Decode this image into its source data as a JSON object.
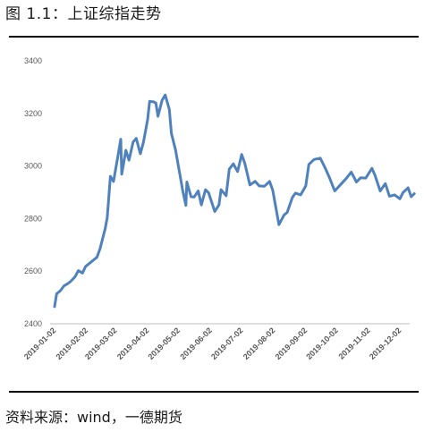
{
  "title": "图 1.1：上证综指走势",
  "source": "资料来源：wind，一德期货",
  "colors": {
    "line": "#4f81bd",
    "axis": "#bfbfbf"
  },
  "chart_data": {
    "type": "line",
    "title": "图 1.1：上证综指走势",
    "xlabel": "",
    "ylabel": "",
    "ylim": [
      2400,
      3400
    ],
    "yticks": [
      2400,
      2600,
      2800,
      3000,
      3200,
      3400
    ],
    "grid": false,
    "legend": "none",
    "xtick_labels": [
      "2019-01-02",
      "2019-02-02",
      "2019-03-02",
      "2019-04-02",
      "2019-05-02",
      "2019-06-02",
      "2019-07-02",
      "2019-08-02",
      "2019-09-02",
      "2019-10-02",
      "2019-11-02",
      "2019-12-02"
    ],
    "series": [
      {
        "x": [
          "2019-01-02",
          "2019-01-04",
          "2019-01-08",
          "2019-01-11",
          "2019-01-15",
          "2019-01-18",
          "2019-01-22",
          "2019-01-25",
          "2019-01-29",
          "2019-02-01",
          "2019-02-12",
          "2019-02-15",
          "2019-02-20",
          "2019-02-22",
          "2019-02-25",
          "2019-02-28",
          "2019-03-05",
          "2019-03-07",
          "2019-03-08",
          "2019-03-12",
          "2019-03-15",
          "2019-03-19",
          "2019-03-22",
          "2019-03-26",
          "2019-03-29",
          "2019-04-02",
          "2019-04-04",
          "2019-04-08",
          "2019-04-10",
          "2019-04-12",
          "2019-04-16",
          "2019-04-19",
          "2019-04-23",
          "2019-04-25",
          "2019-04-29",
          "2019-05-06",
          "2019-05-09",
          "2019-05-10",
          "2019-05-14",
          "2019-05-17",
          "2019-05-21",
          "2019-05-24",
          "2019-05-28",
          "2019-05-31",
          "2019-06-06",
          "2019-06-10",
          "2019-06-12",
          "2019-06-17",
          "2019-06-20",
          "2019-06-24",
          "2019-06-28",
          "2019-07-02",
          "2019-07-05",
          "2019-07-10",
          "2019-07-15",
          "2019-07-19",
          "2019-07-24",
          "2019-07-29",
          "2019-08-01",
          "2019-08-05",
          "2019-08-07",
          "2019-08-12",
          "2019-08-15",
          "2019-08-20",
          "2019-08-23",
          "2019-08-28",
          "2019-09-02",
          "2019-09-05",
          "2019-09-10",
          "2019-09-16",
          "2019-09-20",
          "2019-09-25",
          "2019-09-30",
          "2019-10-11",
          "2019-10-16",
          "2019-10-21",
          "2019-10-25",
          "2019-10-30",
          "2019-11-05",
          "2019-11-08",
          "2019-11-13",
          "2019-11-18",
          "2019-11-22",
          "2019-11-27",
          "2019-12-02",
          "2019-12-05",
          "2019-12-10",
          "2019-12-13",
          "2019-12-16"
        ],
        "values": [
          2465,
          2514,
          2527,
          2544,
          2553,
          2563,
          2580,
          2602,
          2593,
          2618,
          2653,
          2686,
          2762,
          2804,
          2961,
          2941,
          3055,
          3102,
          2969,
          3060,
          3022,
          3091,
          3105,
          3047,
          3091,
          3176,
          3246,
          3244,
          3239,
          3189,
          3250,
          3270,
          3215,
          3124,
          3062,
          2906,
          2850,
          2939,
          2883,
          2882,
          2905,
          2852,
          2910,
          2898,
          2827,
          2852,
          2910,
          2887,
          2988,
          3008,
          2979,
          3044,
          3011,
          2928,
          2942,
          2924,
          2923,
          2941,
          2908,
          2821,
          2777,
          2814,
          2823,
          2880,
          2897,
          2890,
          2924,
          3006,
          3025,
          3030,
          2999,
          2955,
          2905,
          2952,
          2977,
          2939,
          2955,
          2954,
          2991,
          2964,
          2905,
          2933,
          2885,
          2890,
          2875,
          2899,
          2917,
          2883,
          2895
        ]
      }
    ]
  }
}
